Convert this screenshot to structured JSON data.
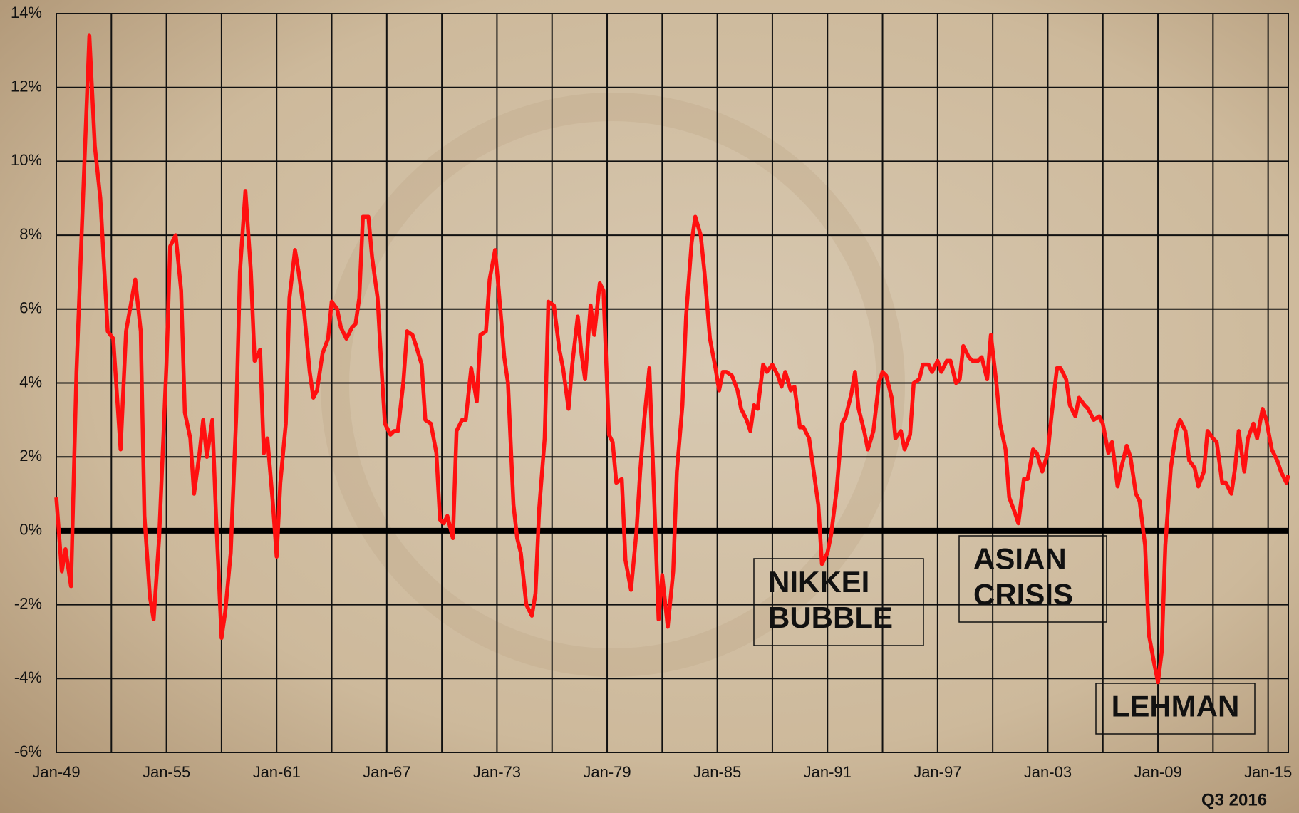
{
  "chart_data": {
    "type": "line",
    "x": [
      1949.0,
      1949.3,
      1949.5,
      1949.8,
      1950.1,
      1950.4,
      1950.8,
      1951.1,
      1951.4,
      1951.8,
      1952.1,
      1952.5,
      1952.8,
      1953.3,
      1953.6,
      1953.8,
      1954.1,
      1954.3,
      1954.6,
      1955.0,
      1955.2,
      1955.5,
      1955.8,
      1956.0,
      1956.3,
      1956.5,
      1956.8,
      1957.0,
      1957.2,
      1957.5,
      1957.7,
      1958.0,
      1958.2,
      1958.5,
      1958.8,
      1959.0,
      1959.3,
      1959.6,
      1959.8,
      1960.1,
      1960.3,
      1960.5,
      1960.8,
      1961.0,
      1961.2,
      1961.5,
      1961.7,
      1962.0,
      1962.2,
      1962.5,
      1962.8,
      1963.0,
      1963.2,
      1963.5,
      1963.8,
      1964.0,
      1964.3,
      1964.5,
      1964.8,
      1965.1,
      1965.3,
      1965.5,
      1965.7,
      1966.0,
      1966.2,
      1966.5,
      1966.7,
      1966.9,
      1967.2,
      1967.4,
      1967.6,
      1967.9,
      1968.1,
      1968.4,
      1968.6,
      1968.9,
      1969.1,
      1969.4,
      1969.7,
      1969.9,
      1970.1,
      1970.3,
      1970.6,
      1970.8,
      1971.1,
      1971.3,
      1971.6,
      1971.9,
      1972.1,
      1972.4,
      1972.6,
      1972.9,
      1973.1,
      1973.4,
      1973.6,
      1973.9,
      1974.1,
      1974.3,
      1974.6,
      1974.9,
      1975.1,
      1975.3,
      1975.6,
      1975.8,
      1976.1,
      1976.4,
      1976.6,
      1976.9,
      1977.1,
      1977.4,
      1977.6,
      1977.8,
      1978.1,
      1978.3,
      1978.6,
      1978.8,
      1979.1,
      1979.3,
      1979.5,
      1979.8,
      1980.0,
      1980.3,
      1980.6,
      1980.8,
      1981.0,
      1981.3,
      1981.6,
      1981.8,
      1982.0,
      1982.3,
      1982.6,
      1982.8,
      1983.1,
      1983.3,
      1983.6,
      1983.8,
      1984.1,
      1984.3,
      1984.6,
      1984.9,
      1985.1,
      1985.3,
      1985.5,
      1985.8,
      1986.1,
      1986.3,
      1986.6,
      1986.8,
      1987.0,
      1987.2,
      1987.5,
      1987.7,
      1988.0,
      1988.3,
      1988.5,
      1988.7,
      1989.0,
      1989.2,
      1989.5,
      1989.7,
      1990.0,
      1990.2,
      1990.5,
      1990.7,
      1991.0,
      1991.2,
      1991.5,
      1991.8,
      1992.0,
      1992.3,
      1992.5,
      1992.7,
      1993.0,
      1993.2,
      1993.5,
      1993.8,
      1994.0,
      1994.2,
      1994.5,
      1994.7,
      1995.0,
      1995.2,
      1995.5,
      1995.7,
      1996.0,
      1996.2,
      1996.5,
      1996.7,
      1997.0,
      1997.2,
      1997.5,
      1997.7,
      1998.0,
      1998.2,
      1998.4,
      1998.7,
      1998.9,
      1999.2,
      1999.4,
      1999.7,
      1999.9,
      2000.2,
      2000.4,
      2000.7,
      2000.9,
      2001.2,
      2001.4,
      2001.7,
      2001.9,
      2002.2,
      2002.4,
      2002.7,
      2003.0,
      2003.2,
      2003.5,
      2003.7,
      2004.0,
      2004.2,
      2004.5,
      2004.7,
      2005.0,
      2005.2,
      2005.5,
      2005.8,
      2006.0,
      2006.3,
      2006.5,
      2006.8,
      2007.0,
      2007.3,
      2007.5,
      2007.8,
      2008.0,
      2008.3,
      2008.5,
      2008.8,
      2009.0,
      2009.2,
      2009.4,
      2009.7,
      2010.0,
      2010.2,
      2010.5,
      2010.7,
      2011.0,
      2011.2,
      2011.5,
      2011.7,
      2012.0,
      2012.2,
      2012.5,
      2012.7,
      2013.0,
      2013.2,
      2013.4,
      2013.7,
      2013.9,
      2014.2,
      2014.4,
      2014.7,
      2014.9,
      2015.2,
      2015.5,
      2015.7,
      2016.0,
      2016.1
    ],
    "series": [
      {
        "color": "#ff1010",
        "values": [
          0.9,
          -1.1,
          -0.5,
          -1.5,
          4.3,
          8.3,
          13.4,
          10.4,
          9.0,
          5.4,
          5.2,
          2.2,
          5.4,
          6.8,
          5.4,
          0.4,
          -1.8,
          -2.4,
          -0.2,
          4.5,
          7.7,
          8.0,
          6.5,
          3.2,
          2.5,
          1.0,
          2.1,
          3.0,
          2.0,
          3.0,
          0.4,
          -2.9,
          -2.2,
          -0.6,
          3.1,
          7.0,
          9.2,
          7.0,
          4.6,
          4.9,
          2.1,
          2.5,
          0.7,
          -0.7,
          1.3,
          2.9,
          6.3,
          7.6,
          7.0,
          5.9,
          4.3,
          3.6,
          3.8,
          4.8,
          5.2,
          6.2,
          6.0,
          5.5,
          5.2,
          5.5,
          5.6,
          6.3,
          8.5,
          8.5,
          7.4,
          6.3,
          4.5,
          2.9,
          2.6,
          2.7,
          2.7,
          4.0,
          5.4,
          5.3,
          5.0,
          4.5,
          3.0,
          2.9,
          2.1,
          0.3,
          0.2,
          0.4,
          -0.2,
          2.7,
          3.0,
          3.0,
          4.4,
          3.5,
          5.3,
          5.4,
          6.8,
          7.6,
          6.5,
          4.7,
          4.0,
          0.7,
          -0.2,
          -0.6,
          -2.0,
          -2.3,
          -1.7,
          0.6,
          2.5,
          6.2,
          6.1,
          4.9,
          4.4,
          3.3,
          4.5,
          5.8,
          4.8,
          4.1,
          6.1,
          5.3,
          6.7,
          6.5,
          2.6,
          2.4,
          1.3,
          1.4,
          -0.8,
          -1.6,
          0.0,
          1.6,
          2.9,
          4.4,
          0.4,
          -2.4,
          -1.2,
          -2.6,
          -1.1,
          1.6,
          3.4,
          5.8,
          7.8,
          8.5,
          8.0,
          7.0,
          5.2,
          4.4,
          3.8,
          4.3,
          4.3,
          4.2,
          3.8,
          3.3,
          3.0,
          2.7,
          3.4,
          3.3,
          4.5,
          4.3,
          4.5,
          4.2,
          3.9,
          4.3,
          3.8,
          3.9,
          2.8,
          2.8,
          2.5,
          1.8,
          0.7,
          -0.9,
          -0.6,
          -0.1,
          1.1,
          2.9,
          3.1,
          3.7,
          4.3,
          3.3,
          2.7,
          2.2,
          2.7,
          4.0,
          4.3,
          4.2,
          3.6,
          2.5,
          2.7,
          2.2,
          2.6,
          4.0,
          4.1,
          4.5,
          4.5,
          4.3,
          4.6,
          4.3,
          4.6,
          4.6,
          4.0,
          4.1,
          5.0,
          4.7,
          4.6,
          4.6,
          4.7,
          4.1,
          5.3,
          4.0,
          2.9,
          2.2,
          0.9,
          0.5,
          0.2,
          1.4,
          1.4,
          2.2,
          2.1,
          1.6,
          2.1,
          3.1,
          4.4,
          4.4,
          4.1,
          3.4,
          3.1,
          3.6,
          3.4,
          3.3,
          3.0,
          3.1,
          2.9,
          2.1,
          2.4,
          1.2,
          1.7,
          2.3,
          2.0,
          1.0,
          0.8,
          -0.4,
          -2.8,
          -3.6,
          -4.1,
          -3.3,
          -0.4,
          1.7,
          2.7,
          3.0,
          2.7,
          1.9,
          1.7,
          1.2,
          1.6,
          2.7,
          2.5,
          2.4,
          1.3,
          1.3,
          1.0,
          1.7,
          2.7,
          1.6,
          2.5,
          2.9,
          2.5,
          3.3,
          3.0,
          2.2,
          1.9,
          1.6,
          1.3,
          1.5
        ]
      }
    ],
    "xlim": [
      1949,
      2016.1
    ],
    "xticks": [
      {
        "value": 1949,
        "label": "Jan-49"
      },
      {
        "value": 1955,
        "label": "Jan-55"
      },
      {
        "value": 1961,
        "label": "Jan-61"
      },
      {
        "value": 1967,
        "label": "Jan-67"
      },
      {
        "value": 1973,
        "label": "Jan-73"
      },
      {
        "value": 1979,
        "label": "Jan-79"
      },
      {
        "value": 1985,
        "label": "Jan-85"
      },
      {
        "value": 1991,
        "label": "Jan-91"
      },
      {
        "value": 1997,
        "label": "Jan-97"
      },
      {
        "value": 2003,
        "label": "Jan-03"
      },
      {
        "value": 2009,
        "label": "Jan-09"
      },
      {
        "value": 2015,
        "label": "Jan-15"
      }
    ],
    "xgrid": [
      1952,
      1958,
      1964,
      1970,
      1976,
      1982,
      1988,
      1994,
      2000,
      2006,
      2012
    ],
    "ylim": [
      -6,
      14
    ],
    "yticks": [
      {
        "value": -6,
        "label": "-6%"
      },
      {
        "value": -4,
        "label": "-4%"
      },
      {
        "value": -2,
        "label": "-2%"
      },
      {
        "value": 0,
        "label": "0%"
      },
      {
        "value": 2,
        "label": "2%"
      },
      {
        "value": 4,
        "label": "4%"
      },
      {
        "value": 6,
        "label": "6%"
      },
      {
        "value": 8,
        "label": "8%"
      },
      {
        "value": 10,
        "label": "10%"
      },
      {
        "value": 12,
        "label": "12%"
      },
      {
        "value": 14,
        "label": "14%"
      }
    ],
    "grid": true,
    "annotations": [
      {
        "lines": [
          "NIKKEI",
          "BUBBLE"
        ]
      },
      {
        "lines": [
          "ASIAN",
          "CRISIS"
        ]
      },
      {
        "lines": [
          "LEHMAN"
        ]
      }
    ],
    "note": "Q3 2016"
  }
}
